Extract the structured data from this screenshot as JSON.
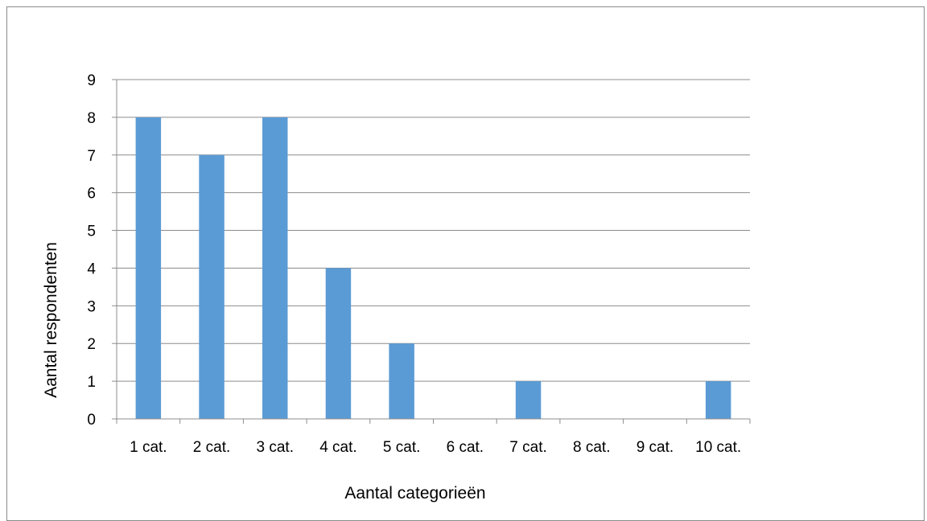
{
  "chart_data": {
    "type": "bar",
    "categories": [
      "1 cat.",
      "2 cat.",
      "3 cat.",
      "4 cat.",
      "5 cat.",
      "6 cat.",
      "7 cat.",
      "8 cat.",
      "9 cat.",
      "10 cat."
    ],
    "values": [
      8,
      7,
      8,
      4,
      2,
      0,
      1,
      0,
      0,
      1
    ],
    "xlabel": "Aantal categorieën",
    "ylabel": "Aantal respondenten",
    "ylim": [
      0,
      9
    ],
    "yticks": [
      0,
      1,
      2,
      3,
      4,
      5,
      6,
      7,
      8,
      9
    ],
    "grid": true,
    "legend": "none",
    "colors": {
      "bar": "#5b9bd5",
      "grid": "#8c8c8c",
      "axis": "#8c8c8c",
      "border": "#8c8c8c"
    }
  }
}
